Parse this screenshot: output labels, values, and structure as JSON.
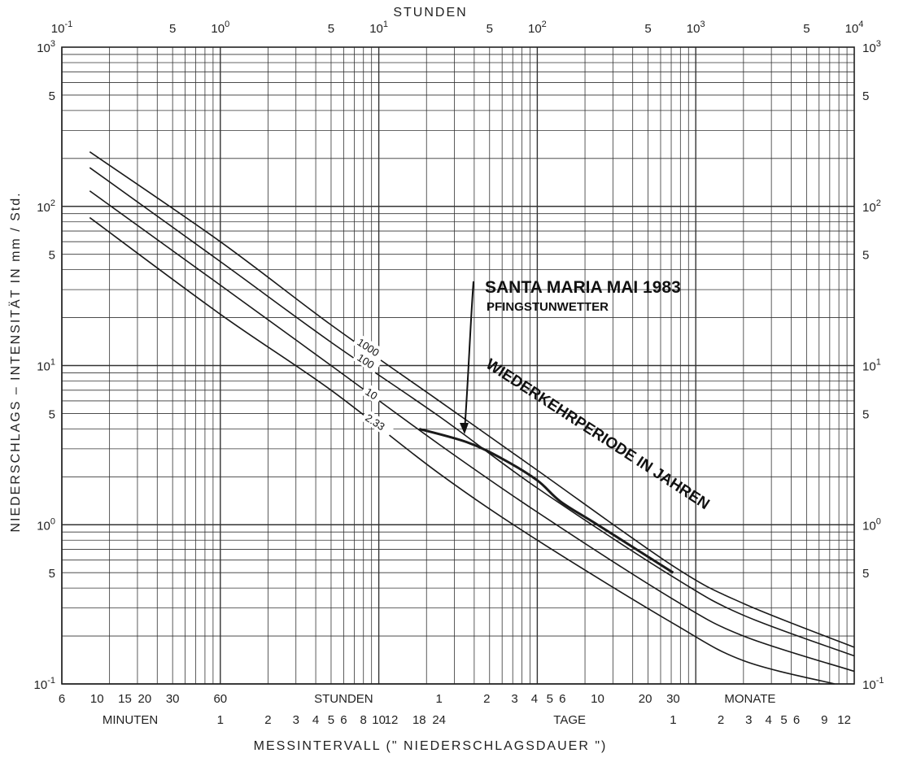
{
  "chart_data": {
    "type": "line",
    "title": "",
    "x_scale": "log",
    "y_scale": "log",
    "x_unit": "hours",
    "xlim": [
      0.1,
      10000
    ],
    "ylim": [
      0.1,
      1000
    ],
    "grid": true,
    "top_axis_label": "STUNDEN",
    "top_ticks": [
      {
        "value": 0.1,
        "base": "10",
        "exp": "-1"
      },
      {
        "value": 0.5,
        "base": "5",
        "exp": ""
      },
      {
        "value": 1,
        "base": "10",
        "exp": "0"
      },
      {
        "value": 5,
        "base": "5",
        "exp": ""
      },
      {
        "value": 10,
        "base": "10",
        "exp": "1"
      },
      {
        "value": 50,
        "base": "5",
        "exp": ""
      },
      {
        "value": 100,
        "base": "10",
        "exp": "2"
      },
      {
        "value": 500,
        "base": "5",
        "exp": ""
      },
      {
        "value": 1000,
        "base": "10",
        "exp": "3"
      },
      {
        "value": 5000,
        "base": "5",
        "exp": ""
      },
      {
        "value": 10000,
        "base": "10",
        "exp": "4"
      }
    ],
    "y_ticks": [
      {
        "value": 1000,
        "base": "10",
        "exp": "3"
      },
      {
        "value": 500,
        "base": "5",
        "exp": ""
      },
      {
        "value": 100,
        "base": "10",
        "exp": "2"
      },
      {
        "value": 50,
        "base": "5",
        "exp": ""
      },
      {
        "value": 10,
        "base": "10",
        "exp": "1"
      },
      {
        "value": 5,
        "base": "5",
        "exp": ""
      },
      {
        "value": 1,
        "base": "10",
        "exp": "0"
      },
      {
        "value": 0.5,
        "base": "5",
        "exp": ""
      },
      {
        "value": 0.1,
        "base": "10",
        "exp": "-1"
      }
    ],
    "ylabel": "NIEDERSCHLAGS – INTENSITÄT IN mm / Std.",
    "xlabel": "MESSINTERVALL      (\" NIEDERSCHLAGSDAUER \")",
    "bottom_row1": [
      {
        "label": "6",
        "value": 0.1
      },
      {
        "label": "10",
        "value": 0.1667
      },
      {
        "label": "15",
        "value": 0.25
      },
      {
        "label": "20",
        "value": 0.3333
      },
      {
        "label": "30",
        "value": 0.5
      },
      {
        "label": "60",
        "value": 1
      },
      {
        "label": "STUNDEN",
        "value": 6
      },
      {
        "label": "1",
        "value": 24
      },
      {
        "label": "2",
        "value": 48
      },
      {
        "label": "3",
        "value": 72
      },
      {
        "label": "4",
        "value": 96
      },
      {
        "label": "5",
        "value": 120
      },
      {
        "label": "6",
        "value": 144
      },
      {
        "label": "10",
        "value": 240
      },
      {
        "label": "20",
        "value": 480
      },
      {
        "label": "30",
        "value": 720
      },
      {
        "label": "MONATE",
        "value": 2200
      }
    ],
    "bottom_row2": [
      {
        "label": "MINUTEN",
        "value": 0.27
      },
      {
        "label": "1",
        "value": 1
      },
      {
        "label": "2",
        "value": 2
      },
      {
        "label": "3",
        "value": 3
      },
      {
        "label": "4",
        "value": 4
      },
      {
        "label": "5",
        "value": 5
      },
      {
        "label": "6",
        "value": 6
      },
      {
        "label": "8",
        "value": 8
      },
      {
        "label": "10",
        "value": 10
      },
      {
        "label": "12",
        "value": 12
      },
      {
        "label": "18",
        "value": 18
      },
      {
        "label": "24",
        "value": 24
      },
      {
        "label": "TAGE",
        "value": 160
      },
      {
        "label": "1",
        "value": 720
      },
      {
        "label": "2",
        "value": 1440
      },
      {
        "label": "3",
        "value": 2160
      },
      {
        "label": "4",
        "value": 2880
      },
      {
        "label": "5",
        "value": 3600
      },
      {
        "label": "6",
        "value": 4320
      },
      {
        "label": "9",
        "value": 6480
      },
      {
        "label": "12",
        "value": 8640
      }
    ],
    "series": [
      {
        "name": "1000",
        "values": [
          [
            0.15,
            220
          ],
          [
            1,
            60
          ],
          [
            5,
            18
          ],
          [
            24,
            6
          ],
          [
            100,
            2.2
          ],
          [
            720,
            0.55
          ],
          [
            2000,
            0.32
          ],
          [
            10000,
            0.17
          ]
        ]
      },
      {
        "name": "100",
        "values": [
          [
            0.15,
            175
          ],
          [
            1,
            45
          ],
          [
            5,
            14
          ],
          [
            24,
            4.8
          ],
          [
            100,
            1.7
          ],
          [
            720,
            0.47
          ],
          [
            2000,
            0.27
          ],
          [
            10000,
            0.15
          ]
        ]
      },
      {
        "name": "10",
        "values": [
          [
            0.15,
            125
          ],
          [
            1,
            32
          ],
          [
            5,
            10
          ],
          [
            24,
            3.2
          ],
          [
            100,
            1.2
          ],
          [
            720,
            0.34
          ],
          [
            2000,
            0.2
          ],
          [
            10000,
            0.12
          ]
        ]
      },
      {
        "name": "2.33",
        "values": [
          [
            0.15,
            85
          ],
          [
            1,
            21
          ],
          [
            5,
            7
          ],
          [
            24,
            2.1
          ],
          [
            100,
            0.8
          ],
          [
            720,
            0.24
          ],
          [
            2000,
            0.14
          ],
          [
            7500,
            0.1
          ]
        ]
      },
      {
        "name": "SANTA MARIA MAI 1983",
        "values": [
          [
            18,
            4
          ],
          [
            36,
            3.3
          ],
          [
            60,
            2.6
          ],
          [
            100,
            1.9
          ],
          [
            140,
            1.4
          ],
          [
            240,
            1.0
          ],
          [
            720,
            0.5
          ]
        ]
      }
    ],
    "annotations": {
      "event_title": "SANTA MARIA  MAI 1983",
      "event_subtitle": "PFINGSTUNWETTER",
      "return_period": "WIEDERKEHRPERIODE IN JAHREN"
    }
  }
}
